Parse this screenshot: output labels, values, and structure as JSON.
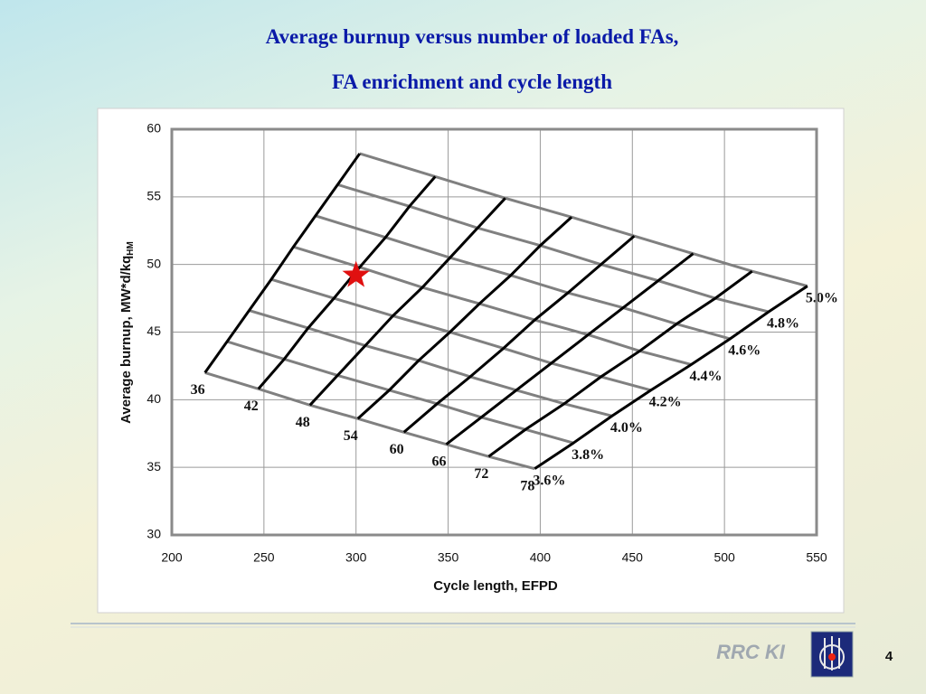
{
  "slide": {
    "title_lines": [
      "Average burnup versus number of loaded FAs,",
      "FA enrichment and cycle length"
    ],
    "footer": {
      "org": "RRC KI",
      "page": "4"
    }
  },
  "chart_data": {
    "type": "carpet",
    "xlabel": "Cycle length, EFPD",
    "ylabel": "Average burnup, MW*d/kq",
    "ylabel_sub": "HM",
    "xlim": [
      200,
      550
    ],
    "ylim": [
      30,
      60
    ],
    "xticks": [
      200,
      250,
      300,
      350,
      400,
      450,
      500,
      550
    ],
    "yticks": [
      30,
      35,
      40,
      45,
      50,
      55,
      60
    ],
    "grid": true,
    "fa_line_color": "#000000",
    "enrichment_line_color": "#808080",
    "enrichment_labels": [
      "3.6%",
      "3.8%",
      "4.0%",
      "4.2%",
      "4.4%",
      "4.6%",
      "4.8%",
      "5.0%"
    ],
    "series": [
      {
        "name": "36",
        "x": [
          218,
          230,
          242,
          254,
          266,
          278,
          290,
          302
        ],
        "y": [
          42.0,
          44.3,
          46.6,
          48.9,
          51.3,
          53.6,
          55.9,
          58.2
        ]
      },
      {
        "name": "42",
        "x": [
          247,
          261,
          274,
          288,
          302,
          316,
          329,
          343
        ],
        "y": [
          40.8,
          43.0,
          45.3,
          47.5,
          49.8,
          52.0,
          54.3,
          56.5
        ]
      },
      {
        "name": "48",
        "x": [
          275,
          290,
          305,
          320,
          336,
          351,
          366,
          381
        ],
        "y": [
          39.6,
          41.8,
          44.0,
          46.2,
          48.3,
          50.5,
          52.7,
          54.9
        ]
      },
      {
        "name": "54",
        "x": [
          301,
          318,
          334,
          351,
          367,
          384,
          400,
          417
        ],
        "y": [
          38.6,
          40.7,
          42.9,
          45.0,
          47.1,
          49.2,
          51.4,
          53.5
        ]
      },
      {
        "name": "60",
        "x": [
          326,
          344,
          362,
          380,
          397,
          415,
          433,
          451
        ],
        "y": [
          37.6,
          39.7,
          41.7,
          43.8,
          45.9,
          47.9,
          50.0,
          52.1
        ]
      },
      {
        "name": "66",
        "x": [
          349,
          368,
          387,
          406,
          426,
          445,
          464,
          483
        ],
        "y": [
          36.7,
          38.7,
          40.7,
          42.7,
          44.8,
          46.8,
          48.8,
          50.8
        ]
      },
      {
        "name": "72",
        "x": [
          372,
          392,
          413,
          433,
          454,
          474,
          495,
          515
        ],
        "y": [
          35.8,
          37.8,
          39.7,
          41.7,
          43.6,
          45.6,
          47.5,
          49.5
        ]
      },
      {
        "name": "78",
        "x": [
          397,
          418,
          439,
          460,
          482,
          503,
          524,
          545
        ],
        "y": [
          34.9,
          36.8,
          38.8,
          40.7,
          42.6,
          44.5,
          46.5,
          48.4
        ]
      }
    ],
    "marker": {
      "x": 300,
      "y": 49.2,
      "color": "#e01010"
    }
  }
}
